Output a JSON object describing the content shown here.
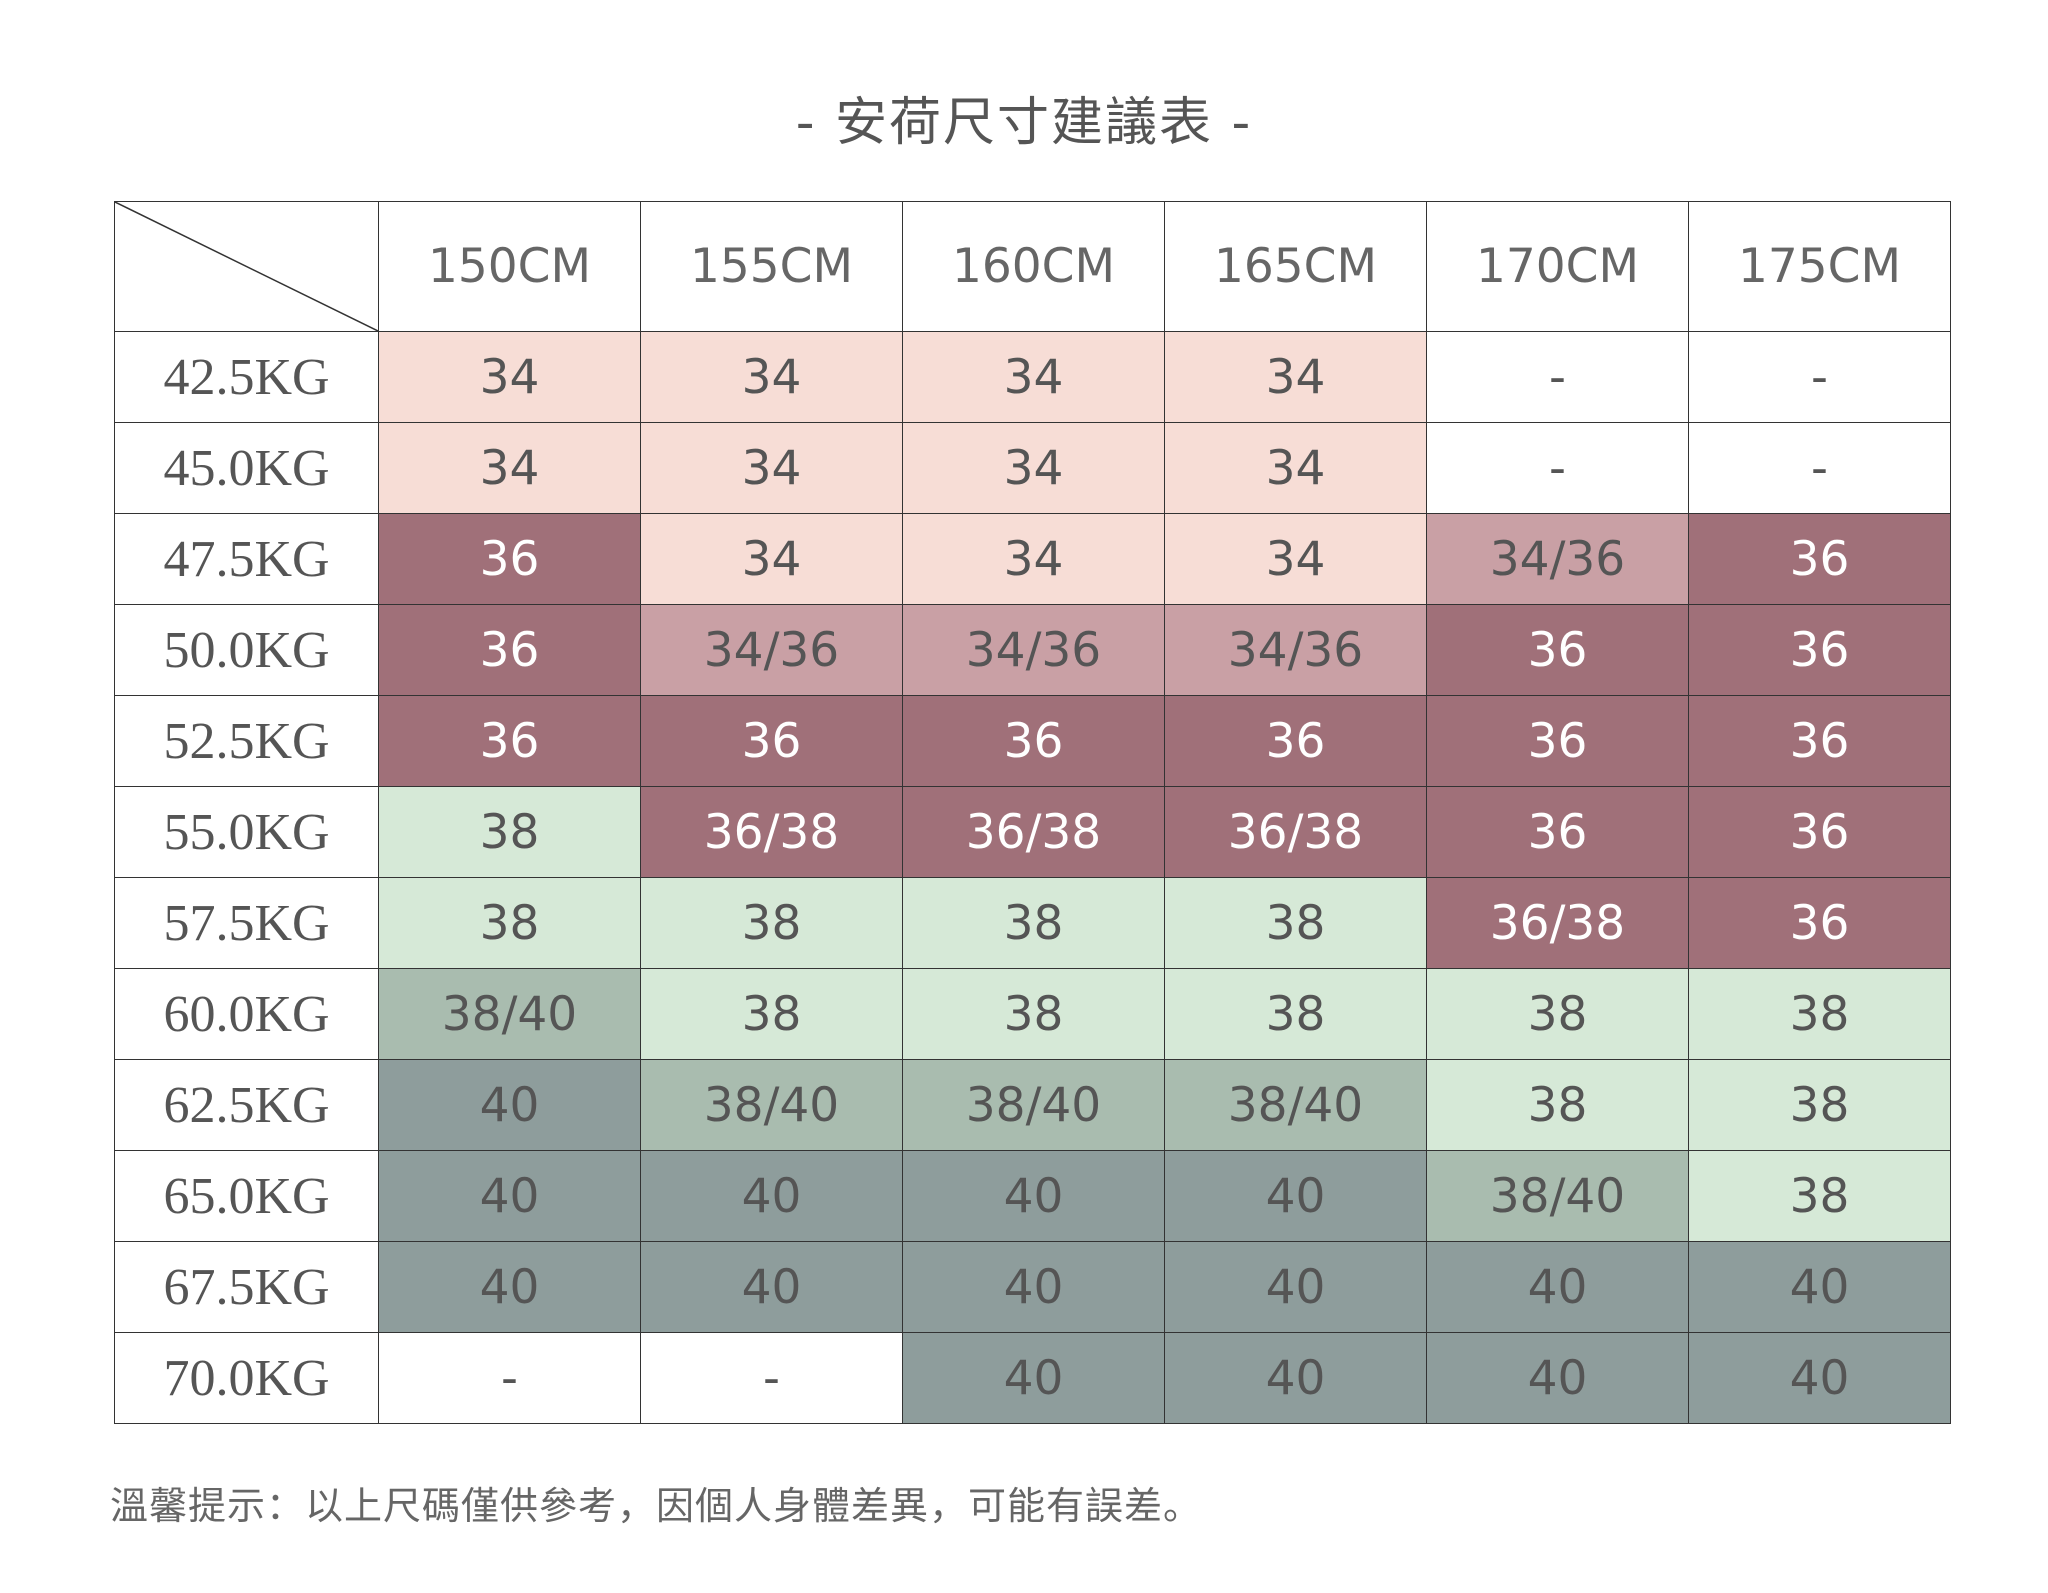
{
  "header": {
    "title": "-  安荷尺寸建議表  -"
  },
  "table": {
    "columns": [
      "150CM",
      "155CM",
      "160CM",
      "165CM",
      "170CM",
      "175CM"
    ],
    "rows": [
      {
        "label": "42.5KG",
        "cells": [
          {
            "text": "34",
            "color": "#f7ddd6"
          },
          {
            "text": "34",
            "color": "#f7ddd6"
          },
          {
            "text": "34",
            "color": "#f7ddd6"
          },
          {
            "text": "34",
            "color": "#f7ddd6"
          },
          {
            "text": "-",
            "color": "#ffffff"
          },
          {
            "text": "-",
            "color": "#ffffff"
          }
        ]
      },
      {
        "label": "45.0KG",
        "cells": [
          {
            "text": "34",
            "color": "#f7ddd6"
          },
          {
            "text": "34",
            "color": "#f7ddd6"
          },
          {
            "text": "34",
            "color": "#f7ddd6"
          },
          {
            "text": "34",
            "color": "#f7ddd6"
          },
          {
            "text": "-",
            "color": "#ffffff"
          },
          {
            "text": "-",
            "color": "#ffffff"
          }
        ]
      },
      {
        "label": "47.5KG",
        "cells": [
          {
            "text": "36",
            "color": "#a07079"
          },
          {
            "text": "34",
            "color": "#f7ddd6"
          },
          {
            "text": "34",
            "color": "#f7ddd6"
          },
          {
            "text": "34",
            "color": "#f7ddd6"
          },
          {
            "text": "34/36",
            "color": "#c9a0a5"
          },
          {
            "text": "36",
            "color": "#a07079"
          }
        ]
      },
      {
        "label": "50.0KG",
        "cells": [
          {
            "text": "36",
            "color": "#a07079"
          },
          {
            "text": "34/36",
            "color": "#c9a0a5"
          },
          {
            "text": "34/36",
            "color": "#c9a0a5"
          },
          {
            "text": "34/36",
            "color": "#c9a0a5"
          },
          {
            "text": "36",
            "color": "#a07079"
          },
          {
            "text": "36",
            "color": "#a07079"
          }
        ]
      },
      {
        "label": "52.5KG",
        "cells": [
          {
            "text": "36",
            "color": "#a07079"
          },
          {
            "text": "36",
            "color": "#a07079"
          },
          {
            "text": "36",
            "color": "#a07079"
          },
          {
            "text": "36",
            "color": "#a07079"
          },
          {
            "text": "36",
            "color": "#a07079"
          },
          {
            "text": "36",
            "color": "#a07079"
          }
        ]
      },
      {
        "label": "55.0KG",
        "cells": [
          {
            "text": "38",
            "color": "#d6e9d7"
          },
          {
            "text": "36/38",
            "color": "#a07079"
          },
          {
            "text": "36/38",
            "color": "#a07079"
          },
          {
            "text": "36/38",
            "color": "#a07079"
          },
          {
            "text": "36",
            "color": "#a07079"
          },
          {
            "text": "36",
            "color": "#a07079"
          }
        ]
      },
      {
        "label": "57.5KG",
        "cells": [
          {
            "text": "38",
            "color": "#d6e9d7"
          },
          {
            "text": "38",
            "color": "#d6e9d7"
          },
          {
            "text": "38",
            "color": "#d6e9d7"
          },
          {
            "text": "38",
            "color": "#d6e9d7"
          },
          {
            "text": "36/38",
            "color": "#a07079"
          },
          {
            "text": "36",
            "color": "#a07079"
          }
        ]
      },
      {
        "label": "60.0KG",
        "cells": [
          {
            "text": "38/40",
            "color": "#a9bcaf"
          },
          {
            "text": "38",
            "color": "#d6e9d7"
          },
          {
            "text": "38",
            "color": "#d6e9d7"
          },
          {
            "text": "38",
            "color": "#d6e9d7"
          },
          {
            "text": "38",
            "color": "#d6e9d7"
          },
          {
            "text": "38",
            "color": "#d6e9d7"
          }
        ]
      },
      {
        "label": "62.5KG",
        "cells": [
          {
            "text": "40",
            "color": "#8e9d9c"
          },
          {
            "text": "38/40",
            "color": "#a9bcaf"
          },
          {
            "text": "38/40",
            "color": "#a9bcaf"
          },
          {
            "text": "38/40",
            "color": "#a9bcaf"
          },
          {
            "text": "38",
            "color": "#d6e9d7"
          },
          {
            "text": "38",
            "color": "#d6e9d7"
          }
        ]
      },
      {
        "label": "65.0KG",
        "cells": [
          {
            "text": "40",
            "color": "#8e9d9c"
          },
          {
            "text": "40",
            "color": "#8e9d9c"
          },
          {
            "text": "40",
            "color": "#8e9d9c"
          },
          {
            "text": "40",
            "color": "#8e9d9c"
          },
          {
            "text": "38/40",
            "color": "#a9bcaf"
          },
          {
            "text": "38",
            "color": "#d6e9d7"
          }
        ]
      },
      {
        "label": "67.5KG",
        "cells": [
          {
            "text": "40",
            "color": "#8e9d9c"
          },
          {
            "text": "40",
            "color": "#8e9d9c"
          },
          {
            "text": "40",
            "color": "#8e9d9c"
          },
          {
            "text": "40",
            "color": "#8e9d9c"
          },
          {
            "text": "40",
            "color": "#8e9d9c"
          },
          {
            "text": "40",
            "color": "#8e9d9c"
          }
        ]
      },
      {
        "label": "70.0KG",
        "cells": [
          {
            "text": "-",
            "color": "#ffffff"
          },
          {
            "text": "-",
            "color": "#ffffff"
          },
          {
            "text": "40",
            "color": "#8e9d9c"
          },
          {
            "text": "40",
            "color": "#8e9d9c"
          },
          {
            "text": "40",
            "color": "#8e9d9c"
          },
          {
            "text": "40",
            "color": "#8e9d9c"
          }
        ]
      }
    ]
  },
  "footer": {
    "note": "溫馨提示：以上尺碼僅供參考，因個人身體差異，可能有誤差。"
  }
}
